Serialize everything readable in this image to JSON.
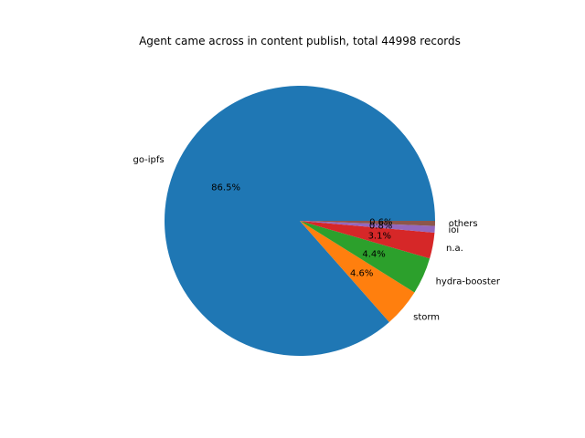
{
  "chart_data": {
    "type": "pie",
    "title": "Agent came across in content publish, total 44998 records",
    "slices": [
      {
        "label": "go-ipfs",
        "value": 86.5,
        "pct_label": "86.5%",
        "color": "#1f77b4"
      },
      {
        "label": "storm",
        "value": 4.6,
        "pct_label": "4.6%",
        "color": "#ff7f0e"
      },
      {
        "label": "hydra-booster",
        "value": 4.4,
        "pct_label": "4.4%",
        "color": "#2ca02c"
      },
      {
        "label": "n.a.",
        "value": 3.1,
        "pct_label": "3.1%",
        "color": "#d62728"
      },
      {
        "label": "ioi",
        "value": 0.8,
        "pct_label": "0.8%",
        "color": "#9467bd"
      },
      {
        "label": "others",
        "value": 0.6,
        "pct_label": "0.6%",
        "color": "#8c564b"
      }
    ],
    "start_angle": 0,
    "direction": "counterclockwise",
    "legend": "none"
  }
}
